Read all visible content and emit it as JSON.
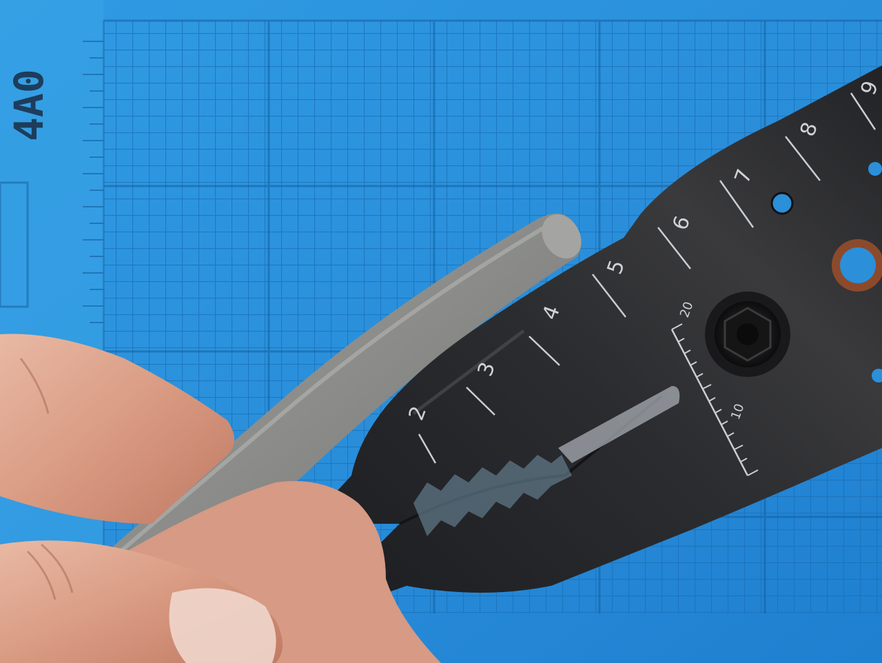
{
  "mat": {
    "corner_label": "4A0"
  },
  "tool": {
    "ruler_marks": [
      "2",
      "3",
      "4",
      "5",
      "6",
      "7",
      "8",
      "9"
    ],
    "gauge_labels": [
      "20",
      "10"
    ]
  }
}
